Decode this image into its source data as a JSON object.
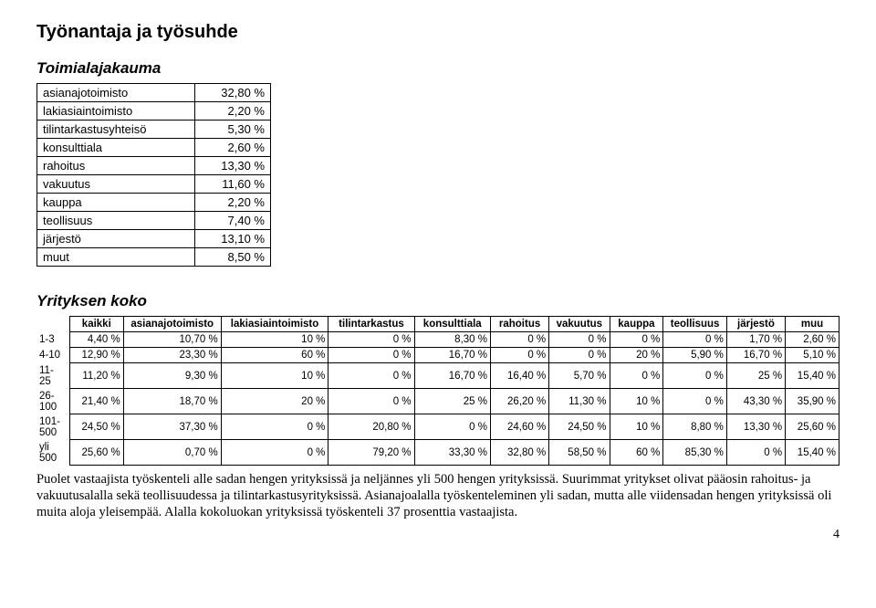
{
  "title": "Työnantaja ja työsuhde",
  "section1": {
    "heading": "Toimialajakauma",
    "rows": [
      {
        "label": "asianajotoimisto",
        "value": "32,80 %"
      },
      {
        "label": "lakiasiaintoimisto",
        "value": "2,20 %"
      },
      {
        "label": "tilintarkastusyhteisö",
        "value": "5,30 %"
      },
      {
        "label": "konsulttiala",
        "value": "2,60 %"
      },
      {
        "label": "rahoitus",
        "value": "13,30 %"
      },
      {
        "label": "vakuutus",
        "value": "11,60 %"
      },
      {
        "label": "kauppa",
        "value": "2,20 %"
      },
      {
        "label": "teollisuus",
        "value": "7,40 %"
      },
      {
        "label": "järjestö",
        "value": "13,10 %"
      },
      {
        "label": "muut",
        "value": "8,50 %"
      }
    ]
  },
  "section2": {
    "heading": "Yrityksen koko",
    "columns": [
      "kaikki",
      "asianajotoimisto",
      "lakiasiaintoimisto",
      "tilintarkastus",
      "konsulttiala",
      "rahoitus",
      "vakuutus",
      "kauppa",
      "teollisuus",
      "järjestö",
      "muu"
    ],
    "rows": [
      {
        "hdr": "1-3",
        "cells": [
          "4,40 %",
          "10,70 %",
          "10 %",
          "0 %",
          "8,30 %",
          "0 %",
          "0 %",
          "0 %",
          "0 %",
          "1,70 %",
          "2,60 %"
        ]
      },
      {
        "hdr": "4-10",
        "cells": [
          "12,90 %",
          "23,30 %",
          "60 %",
          "0 %",
          "16,70 %",
          "0 %",
          "0 %",
          "20 %",
          "5,90 %",
          "16,70 %",
          "5,10 %"
        ]
      },
      {
        "hdr": "11-\n25",
        "cells": [
          "11,20 %",
          "9,30 %",
          "10 %",
          "0 %",
          "16,70 %",
          "16,40 %",
          "5,70 %",
          "0 %",
          "0 %",
          "25 %",
          "15,40 %"
        ]
      },
      {
        "hdr": "26-\n100",
        "cells": [
          "21,40 %",
          "18,70 %",
          "20 %",
          "0 %",
          "25 %",
          "26,20 %",
          "11,30 %",
          "10 %",
          "0 %",
          "43,30 %",
          "35,90 %"
        ]
      },
      {
        "hdr": "101-\n500",
        "cells": [
          "24,50 %",
          "37,30 %",
          "0 %",
          "20,80 %",
          "0 %",
          "24,60 %",
          "24,50 %",
          "10 %",
          "8,80 %",
          "13,30 %",
          "25,60 %"
        ]
      },
      {
        "hdr": "yli\n500",
        "cells": [
          "25,60 %",
          "0,70 %",
          "0 %",
          "79,20 %",
          "33,30 %",
          "32,80 %",
          "58,50 %",
          "60 %",
          "85,30 %",
          "0 %",
          "15,40 %"
        ]
      }
    ]
  },
  "paragraph": "Puolet vastaajista työskenteli alle sadan hengen yrityksissä ja neljännes yli 500 hengen yrityksissä. Suurimmat yritykset olivat pääosin rahoitus- ja vakuutusalalla sekä teollisuudessa ja tilintarkastusyrityksissä. Asianajoalalla työskenteleminen yli sadan, mutta alle viidensadan hengen yrityksissä oli muita aloja yleisempää. Alalla kokoluokan yrityksissä työskenteli 37 prosenttia vastaajista.",
  "page_number": "4"
}
